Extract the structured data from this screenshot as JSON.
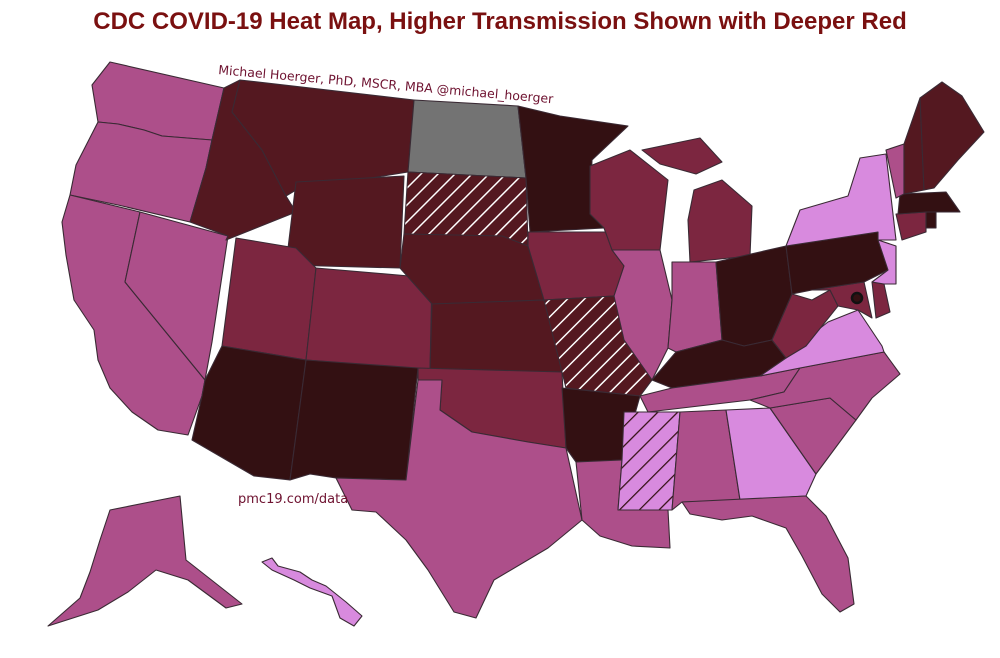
{
  "title": "CDC COVID-19 Heat Map, Higher Transmission Shown with Deeper Red",
  "credit": "Michael Hoerger, PhD, MSCR, MBA  @michael_hoerger",
  "url": "pmc19.com/data",
  "colors": {
    "level_1": "#d88ade",
    "level_2": "#ad4f8a",
    "level_3": "#7c2640",
    "level_4": "#541820",
    "level_5": "#331012",
    "no_data": "#737373",
    "hatch_line": "#ffffff",
    "title": "#7a1010"
  },
  "states": [
    {
      "id": "WA",
      "level": 2
    },
    {
      "id": "OR",
      "level": 2
    },
    {
      "id": "CA",
      "level": 2
    },
    {
      "id": "NV",
      "level": 2
    },
    {
      "id": "ID",
      "level": 4
    },
    {
      "id": "MT",
      "level": 4
    },
    {
      "id": "WY",
      "level": 4
    },
    {
      "id": "UT",
      "level": 3
    },
    {
      "id": "CO",
      "level": 3
    },
    {
      "id": "AZ",
      "level": 5
    },
    {
      "id": "NM",
      "level": 5
    },
    {
      "id": "ND",
      "level": "no_data"
    },
    {
      "id": "SD",
      "level": 4,
      "hatched": true
    },
    {
      "id": "NE",
      "level": 4
    },
    {
      "id": "KS",
      "level": 4
    },
    {
      "id": "OK",
      "level": 3
    },
    {
      "id": "TX",
      "level": 2
    },
    {
      "id": "MN",
      "level": 5
    },
    {
      "id": "IA",
      "level": 3
    },
    {
      "id": "MO",
      "level": 4,
      "hatched": true
    },
    {
      "id": "AR",
      "level": 5
    },
    {
      "id": "LA",
      "level": 2
    },
    {
      "id": "WI",
      "level": 3
    },
    {
      "id": "IL",
      "level": 2
    },
    {
      "id": "MI",
      "level": 3
    },
    {
      "id": "IN",
      "level": 2
    },
    {
      "id": "OH",
      "level": 5
    },
    {
      "id": "KY",
      "level": 5
    },
    {
      "id": "TN",
      "level": 2
    },
    {
      "id": "MS",
      "level": 1,
      "hatched": true
    },
    {
      "id": "AL",
      "level": 2
    },
    {
      "id": "GA",
      "level": 1
    },
    {
      "id": "FL",
      "level": 2
    },
    {
      "id": "SC",
      "level": 2
    },
    {
      "id": "NC",
      "level": 2
    },
    {
      "id": "VA",
      "level": 1
    },
    {
      "id": "WV",
      "level": 3
    },
    {
      "id": "MD",
      "level": 3
    },
    {
      "id": "DE",
      "level": 3
    },
    {
      "id": "DC",
      "level": 5
    },
    {
      "id": "PA",
      "level": 5
    },
    {
      "id": "NJ",
      "level": 1
    },
    {
      "id": "NY",
      "level": 1
    },
    {
      "id": "CT",
      "level": 3
    },
    {
      "id": "RI",
      "level": 5
    },
    {
      "id": "MA",
      "level": 5
    },
    {
      "id": "VT",
      "level": 2
    },
    {
      "id": "NH",
      "level": 4
    },
    {
      "id": "ME",
      "level": 4
    },
    {
      "id": "AK",
      "level": 2
    },
    {
      "id": "HI",
      "level": 1
    }
  ]
}
